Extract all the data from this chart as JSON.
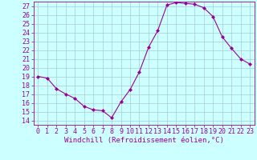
{
  "x": [
    0,
    1,
    2,
    3,
    4,
    5,
    6,
    7,
    8,
    9,
    10,
    11,
    12,
    13,
    14,
    15,
    16,
    17,
    18,
    19,
    20,
    21,
    22,
    23
  ],
  "y": [
    19.0,
    18.8,
    17.6,
    17.0,
    16.5,
    15.6,
    15.2,
    15.1,
    14.3,
    16.1,
    17.5,
    19.5,
    22.3,
    24.2,
    27.1,
    27.4,
    27.3,
    27.2,
    26.8,
    25.8,
    23.5,
    22.2,
    21.0,
    20.4
  ],
  "line_color": "#990099",
  "marker": "D",
  "marker_size": 2.0,
  "bg_color": "#ccffff",
  "grid_color": "#aacccc",
  "xlabel": "Windchill (Refroidissement éolien,°C)",
  "xlabel_color": "#990099",
  "xlabel_fontsize": 6.5,
  "tick_color": "#990099",
  "tick_fontsize": 6.0,
  "ylim": [
    13.5,
    27.5
  ],
  "xlim": [
    -0.5,
    23.5
  ],
  "yticks": [
    14,
    15,
    16,
    17,
    18,
    19,
    20,
    21,
    22,
    23,
    24,
    25,
    26,
    27
  ],
  "xticks": [
    0,
    1,
    2,
    3,
    4,
    5,
    6,
    7,
    8,
    9,
    10,
    11,
    12,
    13,
    14,
    15,
    16,
    17,
    18,
    19,
    20,
    21,
    22,
    23
  ]
}
